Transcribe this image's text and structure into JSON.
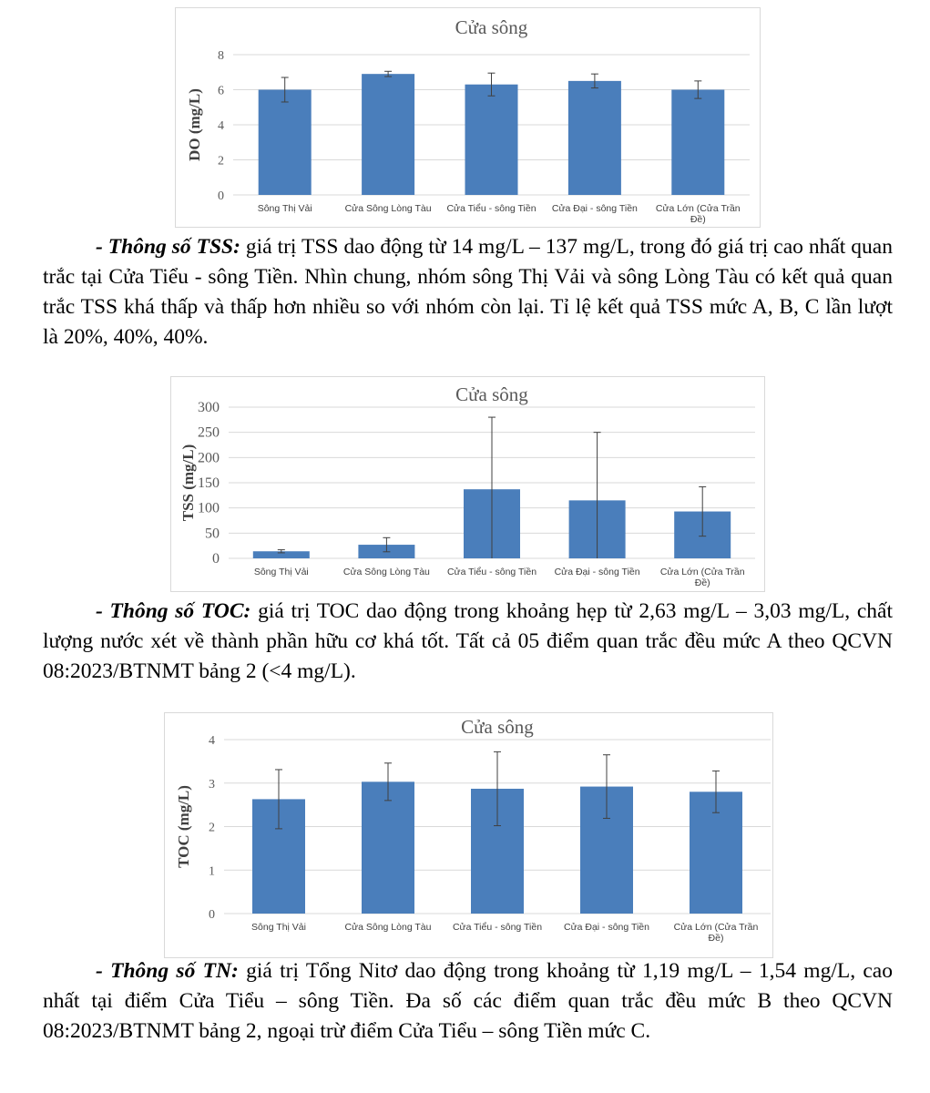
{
  "paragraphs": [
    {
      "lead": "- Thông số TSS:",
      "text": " giá trị TSS dao động từ 14 mg/L – 137 mg/L, trong đó giá trị cao nhất quan trắc tại Cửa Tiểu - sông Tiền. Nhìn chung, nhóm sông Thị Vải và sông Lòng Tàu có kết quả quan trắc TSS khá thấp và thấp hơn nhiều so với nhóm còn lại. Tỉ lệ kết quả TSS mức A, B, C lần lượt là 20%, 40%, 40%."
    },
    {
      "lead": "- Thông số TOC:",
      "text": " giá trị TOC dao động trong khoảng hẹp từ 2,63 mg/L – 3,03 mg/L, chất lượng nước xét về thành phần hữu cơ khá tốt. Tất cả 05 điểm quan trắc đều mức A theo QCVN 08:2023/BTNMT bảng 2 (<4 mg/L)."
    },
    {
      "lead": "- Thông số TN:",
      "text": " giá trị Tổng Nitơ dao động trong khoảng từ 1,19 mg/L – 1,54 mg/L, cao nhất tại điểm Cửa Tiểu – sông Tiền. Đa số các điểm quan trắc đều mức B theo QCVN 08:2023/BTNMT bảng 2, ngoại trừ điểm Cửa Tiểu – sông Tiền mức C."
    }
  ],
  "colors": {
    "bar": "#4a7ebb",
    "grid": "#d9d9d9",
    "error": "#404040"
  },
  "chart_data": [
    {
      "type": "bar",
      "title": "Cửa sông",
      "xlabel": "",
      "ylabel": "DO  (mg/L)",
      "categories": [
        "Sông Thị Vải",
        "Cửa Sông Lòng Tàu",
        "Cửa Tiểu - sông Tiền",
        "Cửa Đại - sông Tiền",
        "Cửa Lớn (Cửa Trần Đề)"
      ],
      "values": [
        6.0,
        6.9,
        6.3,
        6.5,
        6.0
      ],
      "errors": [
        0.7,
        0.15,
        0.65,
        0.4,
        0.5
      ],
      "ylim": [
        0,
        8
      ],
      "yticks": [
        0,
        2,
        4,
        6,
        8
      ],
      "grid": true
    },
    {
      "type": "bar",
      "title": "Cửa sông",
      "xlabel": "",
      "ylabel": "TSS  (mg/L)",
      "categories": [
        "Sông Thị Vải",
        "Cửa Sông Lòng Tàu",
        "Cửa Tiểu - sông Tiền",
        "Cửa Đại - sông Tiền",
        "Cửa Lớn (Cửa Trần Đề)"
      ],
      "values": [
        14,
        27,
        137,
        115,
        93
      ],
      "errors": [
        3,
        14,
        143,
        135,
        49
      ],
      "ylim": [
        0,
        300
      ],
      "yticks": [
        0,
        50,
        100,
        150,
        200,
        250,
        300
      ],
      "grid": true
    },
    {
      "type": "bar",
      "title": "Cửa sông",
      "xlabel": "",
      "ylabel": "TOC (mg/L)",
      "categories": [
        "Sông Thị Vải",
        "Cửa Sông Lòng Tàu",
        "Cửa Tiểu - sông Tiền",
        "Cửa Đại - sông Tiền",
        "Cửa Lớn (Cửa Trần Đề)"
      ],
      "values": [
        2.63,
        3.03,
        2.87,
        2.92,
        2.8
      ],
      "errors": [
        0.68,
        0.43,
        0.85,
        0.73,
        0.48
      ],
      "ylim": [
        0,
        4
      ],
      "yticks": [
        0,
        1,
        2,
        3,
        4
      ],
      "grid": true
    }
  ]
}
